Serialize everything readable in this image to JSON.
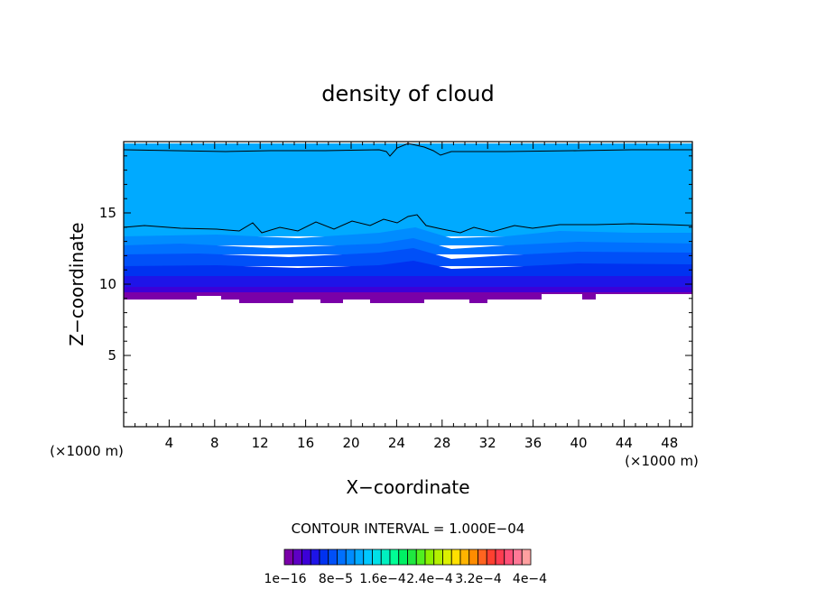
{
  "chart_data": {
    "type": "contour",
    "title": "density of cloud",
    "xlabel": "X−coordinate",
    "ylabel": "Z−coordinate",
    "x_unit_left": "(×1000 m)",
    "x_unit_right": "(×1000 m)",
    "xlim": [
      0,
      50
    ],
    "ylim": [
      0,
      20
    ],
    "xticks": [
      4,
      8,
      12,
      16,
      20,
      24,
      28,
      32,
      36,
      40,
      44,
      48
    ],
    "yticks": [
      5,
      10,
      15
    ],
    "contour_interval_label": "CONTOUR INTERVAL = 1.000E−04",
    "colorbar_labels": [
      "1e−16",
      "8e−5",
      "1.6e−4",
      "2.4e−4",
      "3.2e−4",
      "4e−4"
    ],
    "colorbar_colors": [
      "#7a00a8",
      "#5e00c4",
      "#3c00d8",
      "#1e14e8",
      "#0032f0",
      "#0050f8",
      "#0070ff",
      "#008cff",
      "#00aaff",
      "#00c8ff",
      "#00e0e8",
      "#00f0c0",
      "#00ff96",
      "#00f064",
      "#20e840",
      "#50f020",
      "#8cf000",
      "#b4f000",
      "#dcf000",
      "#ffe000",
      "#ffb400",
      "#ff8c00",
      "#ff6420",
      "#ff4030",
      "#ff3c50",
      "#ff5078",
      "#ff7896",
      "#ffa0a0"
    ],
    "bands": [
      {
        "z_bottom": 9.7,
        "z_top": 10.4,
        "color": "#1e14e8"
      },
      {
        "z_bottom": 10.4,
        "z_top": 11.2,
        "color": "#0032f0"
      },
      {
        "z_bottom": 11.2,
        "z_top": 11.9,
        "color": "#0050f8"
      },
      {
        "z_bottom": 11.9,
        "z_top": 12.6,
        "color": "#0070ff"
      },
      {
        "z_bottom": 12.6,
        "z_top": 13.3,
        "color": "#008cff"
      },
      {
        "z_bottom": 13.3,
        "z_top": 19.4,
        "color": "#00aaff"
      }
    ],
    "cloud_base_z": 9.0,
    "cloud_top_z": 19.6
  }
}
